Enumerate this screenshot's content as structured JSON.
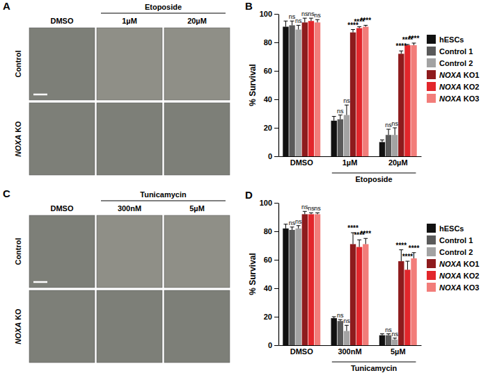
{
  "image_panels": [
    {
      "label": "A",
      "columns": [
        "DMSO",
        "1µM",
        "20µM"
      ],
      "column_groups": [
        {
          "label": "Etoposide",
          "from": "1µM",
          "to": "20µM"
        }
      ],
      "rows": [
        "Control",
        "NOXA KO"
      ]
    },
    {
      "label": "C",
      "columns": [
        "DMSO",
        "300nM",
        "5µM"
      ],
      "column_groups": [
        {
          "label": "Tunicamycin",
          "from": "300nM",
          "to": "5µM"
        }
      ],
      "rows": [
        "Control",
        "NOXA KO"
      ]
    }
  ],
  "chart_data": [
    {
      "type": "bar",
      "title": "B",
      "y_label": "% Survival",
      "categories": [
        "DMSO",
        "1µM",
        "20µM"
      ],
      "category_groups": [
        {
          "label": "Etoposide",
          "from": "1µM",
          "to": "20µM"
        }
      ],
      "ylim": [
        0,
        100
      ],
      "yticks": [
        0,
        20,
        40,
        60,
        80,
        100
      ],
      "grid": false,
      "legend": "right",
      "series": [
        {
          "name": "hESCs",
          "color": "#111111",
          "values": [
            91,
            25,
            10
          ],
          "errors": [
            4,
            3,
            1.5
          ],
          "significance": [
            null,
            null,
            null
          ]
        },
        {
          "name": "Control 1",
          "color": "#5a5a5a",
          "values": [
            92,
            26,
            15
          ],
          "errors": [
            3,
            3,
            4
          ],
          "significance": [
            "ns",
            "ns",
            "ns"
          ]
        },
        {
          "name": "Control 2",
          "color": "#a3a3a3",
          "values": [
            89,
            29,
            15
          ],
          "errors": [
            3,
            7,
            5
          ],
          "significance": [
            "ns",
            "ns",
            "ns"
          ]
        },
        {
          "name": "NOXA KO1",
          "color": "#8e1b1d",
          "values": [
            94,
            87,
            72
          ],
          "errors": [
            3,
            2,
            2
          ],
          "significance": [
            "ns",
            "****",
            "****"
          ]
        },
        {
          "name": "NOXA KO2",
          "color": "#e2262b",
          "values": [
            95,
            90,
            78
          ],
          "errors": [
            2,
            1,
            0.5
          ],
          "significance": [
            "ns",
            "****",
            "****"
          ]
        },
        {
          "name": "NOXA KO3",
          "color": "#f27d7a",
          "values": [
            94,
            91,
            78
          ],
          "errors": [
            2,
            1,
            1.5
          ],
          "significance": [
            "ns",
            "****",
            "****"
          ]
        }
      ]
    },
    {
      "type": "bar",
      "title": "D",
      "y_label": "% Survival",
      "categories": [
        "DMSO",
        "300nM",
        "5µM"
      ],
      "category_groups": [
        {
          "label": "Tunicamycin",
          "from": "300nM",
          "to": "5µM"
        }
      ],
      "ylim": [
        0,
        100
      ],
      "yticks": [
        0,
        20,
        40,
        60,
        80,
        100
      ],
      "grid": false,
      "legend": "right",
      "series": [
        {
          "name": "hESCs",
          "color": "#111111",
          "values": [
            82,
            19,
            7
          ],
          "errors": [
            3,
            1,
            1
          ],
          "significance": [
            null,
            null,
            null
          ]
        },
        {
          "name": "Control 1",
          "color": "#5a5a5a",
          "values": [
            81,
            17,
            7
          ],
          "errors": [
            2,
            1,
            1
          ],
          "significance": [
            "ns",
            "ns",
            "ns"
          ]
        },
        {
          "name": "Control 2",
          "color": "#a3a3a3",
          "values": [
            82,
            10,
            4
          ],
          "errors": [
            2,
            4,
            1
          ],
          "significance": [
            "ns",
            "ns",
            "ns"
          ]
        },
        {
          "name": "NOXA KO1",
          "color": "#8e1b1d",
          "values": [
            92,
            71,
            59
          ],
          "errors": [
            2,
            8,
            8
          ],
          "significance": [
            "ns",
            "****",
            "****"
          ]
        },
        {
          "name": "NOXA KO2",
          "color": "#e2262b",
          "values": [
            92,
            69,
            53
          ],
          "errors": [
            1,
            5,
            6
          ],
          "significance": [
            "ns",
            "****",
            "****"
          ]
        },
        {
          "name": "NOXA KO3",
          "color": "#f27d7a",
          "values": [
            92,
            71,
            61
          ],
          "errors": [
            1,
            4,
            4
          ],
          "significance": [
            "ns",
            "****",
            "****"
          ]
        }
      ]
    }
  ]
}
